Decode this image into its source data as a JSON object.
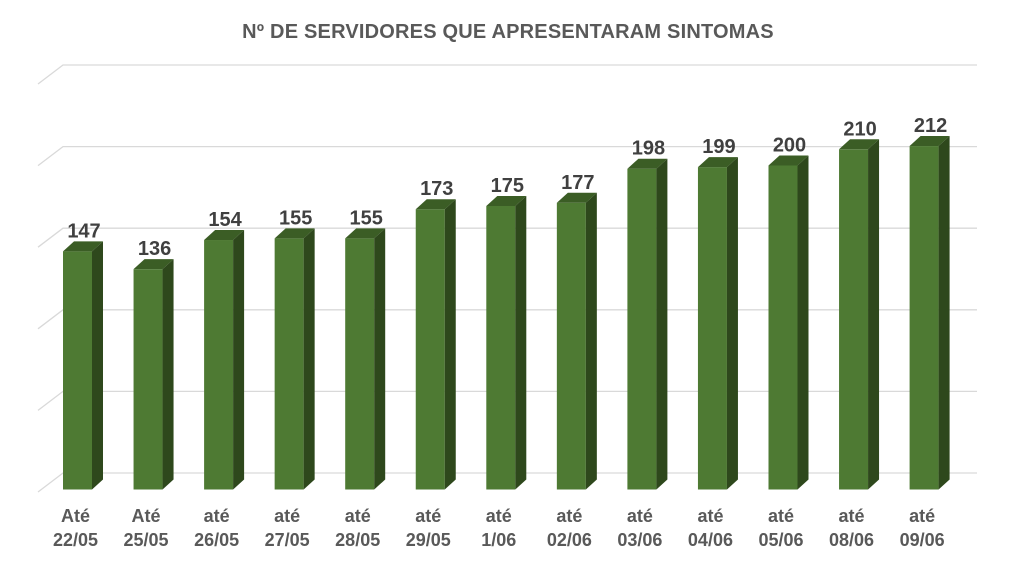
{
  "title": "Nº DE SERVIDORES QUE APRESENTARAM SINTOMAS",
  "chart_data": {
    "type": "bar",
    "style": "3d-column",
    "title": "Nº DE SERVIDORES QUE APRESENTARAM SINTOMAS",
    "xlabel": "",
    "ylabel": "",
    "categories": [
      [
        "Até",
        "22/05"
      ],
      [
        "Até",
        "25/05"
      ],
      [
        "até",
        "26/05"
      ],
      [
        "até",
        "27/05"
      ],
      [
        "até",
        "28/05"
      ],
      [
        "até",
        "29/05"
      ],
      [
        "até",
        "1/06"
      ],
      [
        "até",
        "02/06"
      ],
      [
        "até",
        "03/06"
      ],
      [
        "até",
        "04/06"
      ],
      [
        "até",
        "05/06"
      ],
      [
        "até",
        "08/06"
      ],
      [
        "até",
        "09/06"
      ]
    ],
    "values": [
      147,
      136,
      154,
      155,
      155,
      173,
      175,
      177,
      198,
      199,
      200,
      210,
      212
    ],
    "ylim": [
      0,
      250
    ],
    "gridline_step": 50,
    "gridlines_visible": true,
    "y_axis_tick_labels_visible": false,
    "legend_visible": false,
    "data_labels_visible": true,
    "colors": {
      "background": "#ffffff",
      "title": "#595959",
      "bar_front": "#4e7a33",
      "bar_top": "#3b5d25",
      "bar_side": "#2e481c",
      "gridline": "#d9d9d9",
      "data_label": "#404040",
      "axis_label": "#595959"
    }
  }
}
